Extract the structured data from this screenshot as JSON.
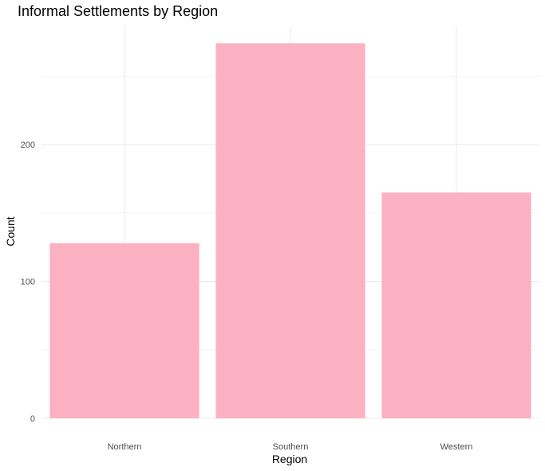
{
  "chart_data": {
    "type": "bar",
    "title": "Informal Settlements by Region",
    "xlabel": "Region",
    "ylabel": "Count",
    "categories": [
      "Northern",
      "Southern",
      "Western"
    ],
    "values": [
      128,
      274,
      165
    ],
    "ylim": [
      0,
      287
    ],
    "yticks": [
      0,
      100,
      200
    ],
    "bar_color": "#fcb1c3",
    "grid": true,
    "grid_color": "#ebebeb",
    "legend": "none"
  }
}
